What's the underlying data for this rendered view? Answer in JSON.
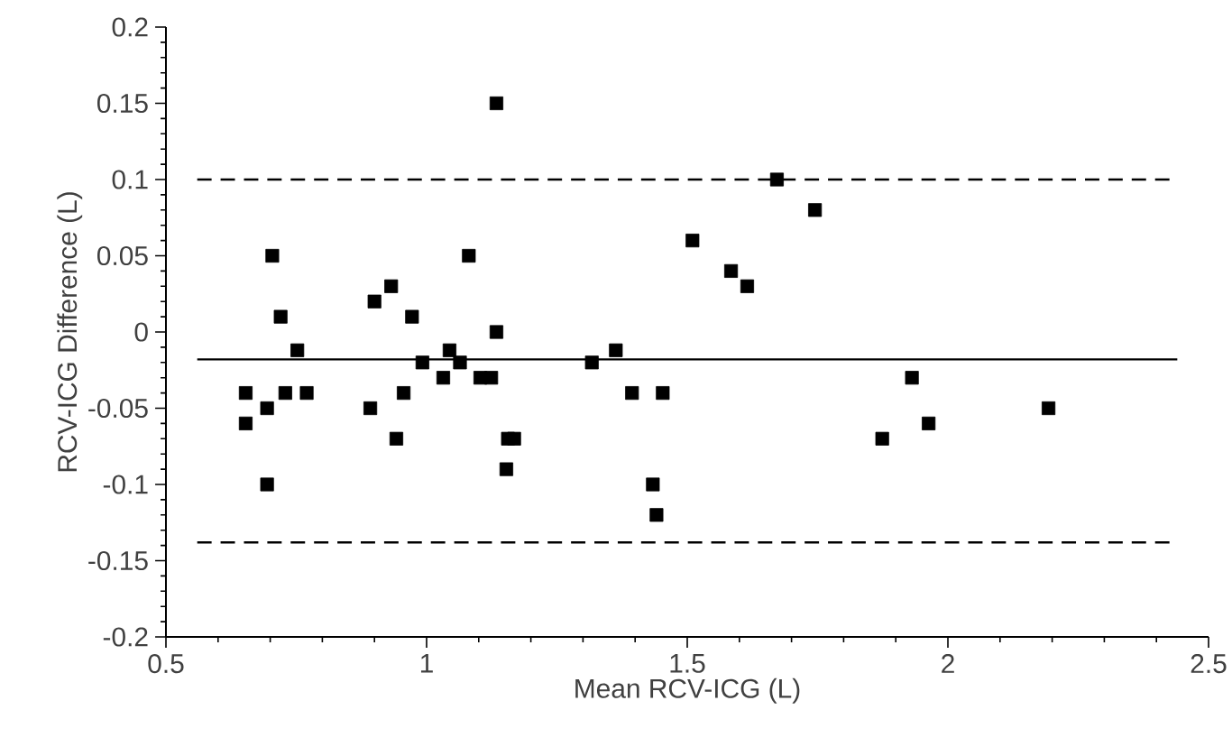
{
  "chart_data": {
    "type": "scatter",
    "xlabel": "Mean RCV-ICG (L)",
    "ylabel": "RCV-ICG Difference (L)",
    "xlim": [
      0.5,
      2.5
    ],
    "ylim": [
      -0.2,
      0.2
    ],
    "xticks": [
      0.5,
      1,
      1.5,
      2,
      2.5
    ],
    "yticks": [
      -0.2,
      -0.15,
      -0.1,
      -0.05,
      0,
      0.05,
      0.1,
      0.15,
      0.2
    ],
    "marker": "square",
    "series": [
      {
        "color": "#000000",
        "x": [
          0.653,
          0.653,
          0.694,
          0.704,
          0.694,
          0.72,
          0.729,
          0.752,
          0.77,
          0.892,
          0.9,
          0.932,
          0.942,
          0.956,
          0.972,
          0.992,
          1.032,
          1.044,
          1.064,
          1.081,
          1.103,
          1.124,
          1.134,
          1.134,
          1.156,
          1.153,
          1.168,
          1.317,
          1.363,
          1.394,
          1.453,
          1.434,
          1.441,
          1.51,
          1.584,
          1.615,
          1.672,
          1.745,
          1.874,
          1.931,
          1.963,
          2.193
        ],
        "values": [
          -0.04,
          -0.06,
          -0.05,
          0.05,
          -0.1,
          0.01,
          -0.04,
          -0.012,
          -0.04,
          -0.05,
          0.02,
          0.03,
          -0.07,
          -0.04,
          0.01,
          -0.02,
          -0.03,
          -0.012,
          -0.02,
          0.05,
          -0.03,
          -0.03,
          0.0,
          0.15,
          -0.07,
          -0.09,
          -0.07,
          -0.02,
          -0.012,
          -0.04,
          -0.04,
          -0.1,
          -0.12,
          0.06,
          0.04,
          0.03,
          0.1,
          0.08,
          -0.07,
          -0.03,
          -0.06,
          -0.05
        ]
      }
    ],
    "ref_lines": [
      {
        "axis": "y",
        "value": 0.1,
        "line_style": "dashed",
        "color": "#000000"
      },
      {
        "axis": "y",
        "value": -0.018,
        "line_style": "solid",
        "color": "#000000"
      },
      {
        "axis": "y",
        "value": -0.138,
        "line_style": "dashed",
        "color": "#000000"
      }
    ]
  }
}
